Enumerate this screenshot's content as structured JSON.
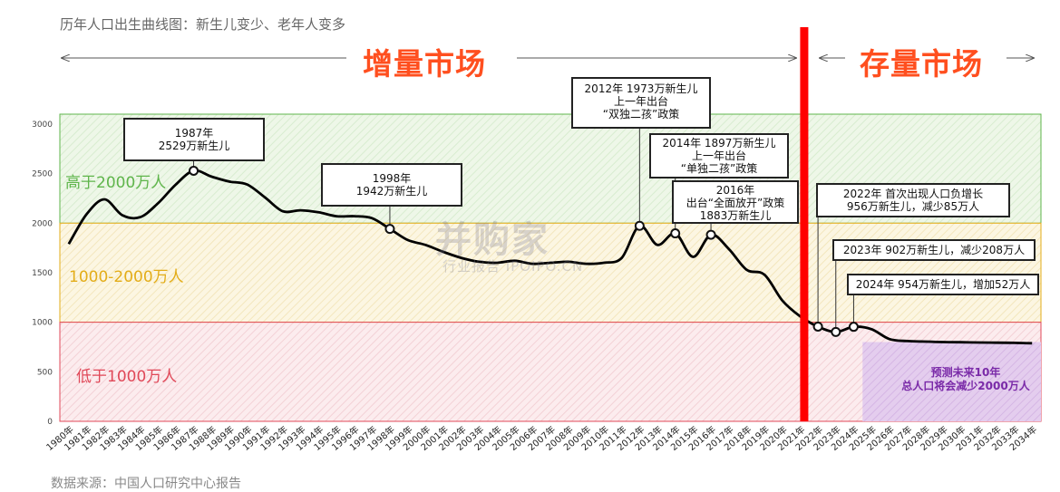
{
  "header": {
    "title": "历年人口出生曲线图：新生儿变少、老年人变多",
    "increment_label": "增量市场",
    "stock_label": "存量市场"
  },
  "source": "数据来源：中国人口研究中心报告",
  "watermark": {
    "main": "并购家",
    "sub": "行业报告 IPOIPO.CN"
  },
  "bands": [
    {
      "label": "高于2000万人",
      "from": 2000,
      "to": 3100,
      "color": "#5fb54b"
    },
    {
      "label": "1000-2000万人",
      "from": 1000,
      "to": 2000,
      "color": "#e3ad19"
    },
    {
      "label": "低于1000万人",
      "from": 0,
      "to": 1000,
      "color": "#e04858"
    }
  ],
  "forecast_note": "预测未来10年\n总人口将会减少2000万人",
  "colors": {
    "line": "#000000",
    "divider": "#ff0000",
    "accent": "#ff4f1f",
    "forecast": "#c9a6e0"
  },
  "callouts": [
    {
      "text": "1987年\n2529万新生儿",
      "year": 1987
    },
    {
      "text": "1998年\n1942万新生儿",
      "year": 1998
    },
    {
      "text": "2012年 1973万新生儿\n上一年出台\n“双独二孩”政策",
      "year": 2012
    },
    {
      "text": "2014年 1897万新生儿\n上一年出台\n“单独二孩”政策",
      "year": 2014
    },
    {
      "text": "2016年\n出台“全面放开”政策\n1883万新生儿",
      "year": 2016
    },
    {
      "text": "2022年 首次出现人口负增长\n956万新生儿，减少85万人",
      "year": 2022
    },
    {
      "text": "2023年 902万新生儿，减少208万人",
      "year": 2023
    },
    {
      "text": "2024年 954万新生儿，增加52万人",
      "year": 2024
    }
  ],
  "chart_data": {
    "type": "line",
    "title": "历年人口出生曲线图：新生儿变少、老年人变多",
    "xlabel": "",
    "ylabel": "",
    "ylim": [
      0,
      3100
    ],
    "yticks": [
      0,
      500,
      1000,
      1500,
      2000,
      2500,
      3000
    ],
    "grid": false,
    "x": [
      "1980年",
      "1981年",
      "1982年",
      "1983年",
      "1984年",
      "1985年",
      "1986年",
      "1987年",
      "1988年",
      "1989年",
      "1990年",
      "1991年",
      "1992年",
      "1993年",
      "1994年",
      "1995年",
      "1996年",
      "1997年",
      "1998年",
      "1999年",
      "2000年",
      "2001年",
      "2002年",
      "2003年",
      "2004年",
      "2005年",
      "2006年",
      "2007年",
      "2008年",
      "2009年",
      "2010年",
      "2011年",
      "2012年",
      "2013年",
      "2014年",
      "2015年",
      "2016年",
      "2017年",
      "2018年",
      "2019年",
      "2020年",
      "2021年",
      "2022年",
      "2023年",
      "2024年",
      "2025年",
      "2026年",
      "2027年",
      "2028年",
      "2029年",
      "2030年",
      "2031年",
      "2032年",
      "2033年",
      "2034年"
    ],
    "series": [
      {
        "values": [
          1790,
          2090,
          2240,
          2080,
          2060,
          2200,
          2390,
          2529,
          2470,
          2420,
          2390,
          2260,
          2120,
          2130,
          2110,
          2070,
          2070,
          2050,
          1942,
          1830,
          1780,
          1710,
          1650,
          1610,
          1600,
          1620,
          1590,
          1600,
          1610,
          1590,
          1600,
          1650,
          1973,
          1780,
          1897,
          1660,
          1883,
          1740,
          1530,
          1480,
          1220,
          1060,
          956,
          902,
          954,
          930,
          830,
          810,
          805,
          800,
          798,
          796,
          794,
          792,
          788
        ]
      }
    ],
    "highlighted_years": [
      "1987年",
      "1998年",
      "2012年",
      "2014年",
      "2016年",
      "2022年",
      "2023年",
      "2024年"
    ],
    "forecast_start": "2025年"
  }
}
